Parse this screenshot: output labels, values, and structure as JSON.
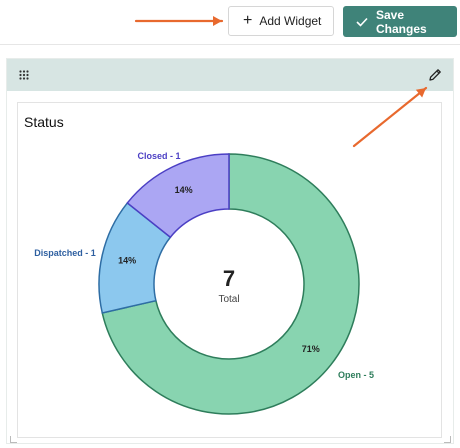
{
  "toolbar": {
    "add_widget_label": "Add Widget",
    "add_widget_icon": "plus-icon",
    "save_changes_label": "Save Changes",
    "save_changes_icon": "check-icon",
    "save_bg": "#3f8379"
  },
  "widget": {
    "header_bg": "#d7e5e3",
    "drag_icon": "drag-grid-icon",
    "edit_icon": "pencil-icon",
    "title": "Status"
  },
  "annotations": {
    "arrow_color": "#e8692e"
  },
  "chart_data": {
    "type": "donut",
    "center_value": "7",
    "center_label": "Total",
    "slices": [
      {
        "label": "Open - 5",
        "value": 5,
        "percent": "71%",
        "color": "#88d4b0",
        "stroke": "#2e7d5b",
        "label_color": "#2e7d5b"
      },
      {
        "label": "Dispatched - 1",
        "value": 1,
        "percent": "14%",
        "color": "#8cc8ee",
        "stroke": "#2e6da4",
        "label_color": "#2e5fa0"
      },
      {
        "label": "Closed - 1",
        "value": 1,
        "percent": "14%",
        "color": "#aba6f3",
        "stroke": "#4b3fc4",
        "label_color": "#4b3fc4"
      }
    ]
  }
}
